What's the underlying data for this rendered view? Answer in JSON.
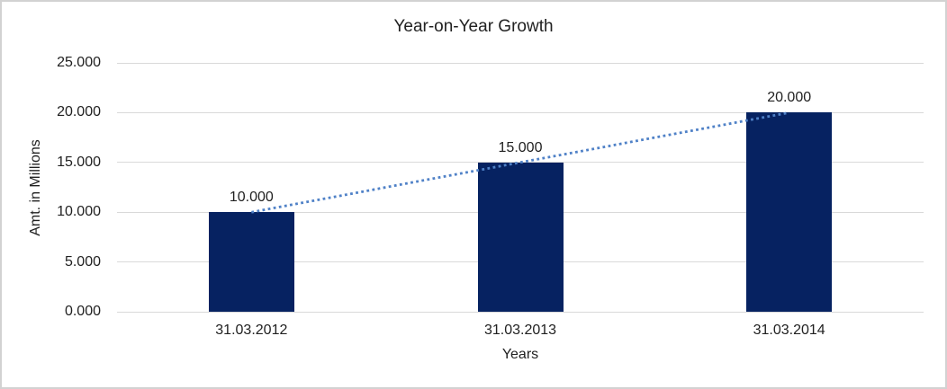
{
  "window": {
    "background": "#ffffff",
    "border_color": "#d2d2d2"
  },
  "chart_data": {
    "type": "bar",
    "title": "Year-on-Year Growth",
    "xlabel": "Years",
    "ylabel": "Amt. in Millions",
    "categories": [
      "31.03.2012",
      "31.03.2013",
      "31.03.2014"
    ],
    "values": [
      10000,
      15000,
      20000
    ],
    "data_labels": [
      "10.000",
      "15.000",
      "20.000"
    ],
    "y_ticks": [
      "0.000",
      "5.000",
      "10.000",
      "15.000",
      "20.000",
      "25.000"
    ],
    "y_tick_values": [
      0,
      5000,
      10000,
      15000,
      20000,
      25000
    ],
    "ylim": [
      0,
      25000
    ],
    "grid": true,
    "legend": "none",
    "bar_color": "#062261",
    "gridline_color": "#d9d9d9",
    "axis_line_color": "#d9d9d9",
    "text_color": "#212121",
    "trendline": {
      "style": "dotted",
      "color": "#4f81c7",
      "from_value": 10000,
      "to_value": 20000
    }
  }
}
